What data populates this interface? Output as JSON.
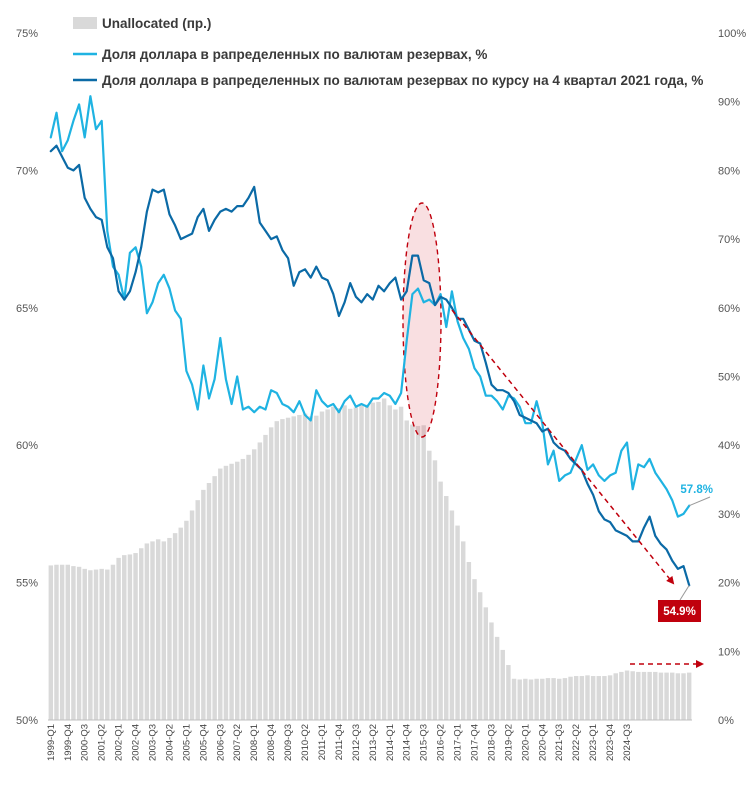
{
  "chart_data": {
    "type": "bar+line",
    "legend": {
      "bars": "Unallocated (пр.)",
      "line1": "Доля доллара в рапределенных по валютам резервах, %",
      "line2": "Доля доллара в рапределенных по валютам резервах по курсу на 4 квартал 2021 года, %"
    },
    "left_axis": {
      "min": 50,
      "max": 75,
      "ticks": [
        "50%",
        "55%",
        "60%",
        "65%",
        "70%",
        "75%"
      ]
    },
    "right_axis": {
      "min": 0,
      "max": 100,
      "ticks": [
        "0%",
        "10%",
        "20%",
        "30%",
        "40%",
        "50%",
        "60%",
        "70%",
        "80%",
        "90%",
        "100%"
      ]
    },
    "x_start": "1999-Q1",
    "x_labels": [
      "1999-Q1",
      "1999-Q4",
      "2000-Q3",
      "2001-Q2",
      "2002-Q1",
      "2002-Q4",
      "2003-Q3",
      "2004-Q2",
      "2005-Q1",
      "2005-Q4",
      "2006-Q3",
      "2007-Q2",
      "2008-Q1",
      "2008-Q4",
      "2009-Q3",
      "2010-Q2",
      "2011-Q1",
      "2011-Q4",
      "2012-Q3",
      "2013-Q2",
      "2014-Q1",
      "2014-Q4",
      "2015-Q3",
      "2016-Q2",
      "2017-Q1",
      "2017-Q4",
      "2018-Q3",
      "2019-Q2",
      "2020-Q1",
      "2020-Q4",
      "2021-Q3",
      "2022-Q2",
      "2023-Q1",
      "2023-Q4",
      "2024-Q3"
    ],
    "unallocated": [
      22.5,
      22.6,
      22.6,
      22.6,
      22.4,
      22.3,
      22.0,
      21.8,
      21.9,
      22.0,
      21.9,
      22.6,
      23.6,
      24.0,
      24.1,
      24.3,
      25.0,
      25.7,
      26.0,
      26.3,
      26.0,
      26.5,
      27.2,
      28.0,
      29.0,
      30.5,
      32.0,
      33.5,
      34.5,
      35.5,
      36.6,
      37.0,
      37.3,
      37.6,
      38.0,
      38.6,
      39.4,
      40.4,
      41.5,
      42.6,
      43.5,
      43.8,
      44.0,
      44.2,
      44.4,
      44.6,
      44.2,
      44.3,
      44.9,
      45.2,
      45.6,
      45.4,
      45.8,
      45.3,
      45.5,
      45.8,
      45.9,
      46.2,
      46.3,
      46.8,
      45.8,
      45.2,
      45.6,
      43.6,
      43.0,
      42.8,
      42.9,
      39.2,
      37.8,
      34.7,
      32.6,
      30.5,
      28.3,
      26.0,
      23.0,
      20.5,
      18.6,
      16.4,
      14.2,
      12.1,
      10.2,
      8.0,
      6.0,
      5.9,
      6.0,
      5.9,
      6.0,
      6.0,
      6.1,
      6.1,
      6.0,
      6.1,
      6.3,
      6.4,
      6.4,
      6.5,
      6.4,
      6.4,
      6.4,
      6.5,
      6.8,
      7.0,
      7.2,
      7.1,
      7.0,
      7.0,
      7.0,
      7.0,
      6.9,
      6.9,
      6.9,
      6.8,
      6.8,
      6.9
    ],
    "series_current": [
      71.2,
      72.1,
      70.7,
      71.1,
      71.8,
      72.4,
      71.2,
      72.7,
      71.5,
      71.8,
      67.8,
      66.5,
      66.2,
      65.3,
      67.0,
      67.2,
      66.5,
      64.8,
      65.2,
      65.9,
      66.2,
      65.7,
      64.9,
      64.6,
      62.7,
      62.2,
      61.3,
      62.9,
      61.7,
      62.4,
      63.9,
      62.4,
      61.5,
      62.5,
      61.3,
      61.4,
      61.2,
      61.4,
      61.3,
      62.0,
      61.9,
      61.5,
      61.4,
      61.2,
      61.6,
      61.1,
      60.9,
      62.0,
      61.6,
      61.4,
      61.5,
      61.2,
      61.6,
      61.8,
      61.4,
      61.5,
      61.4,
      61.7,
      61.7,
      61.9,
      61.8,
      61.5,
      61.9,
      63.8,
      65.5,
      65.7,
      65.2,
      65.3,
      65.1,
      65.5,
      64.3,
      65.6,
      64.5,
      63.9,
      63.5,
      62.8,
      62.5,
      61.8,
      61.8,
      61.6,
      61.3,
      61.8,
      61.7,
      61.4,
      60.8,
      60.8,
      61.6,
      60.8,
      59.3,
      59.8,
      58.7,
      58.9,
      59.0,
      59.5,
      60.0,
      59.1,
      59.3,
      58.9,
      58.7,
      58.9,
      59.0,
      59.8,
      60.1,
      58.4,
      59.3,
      59.2,
      59.5,
      59.0,
      58.7,
      58.4,
      58.0,
      57.4,
      57.5,
      57.8
    ],
    "series_constant": [
      70.7,
      70.9,
      70.5,
      70.1,
      70.0,
      70.2,
      69.0,
      68.6,
      68.3,
      68.2,
      67.2,
      66.8,
      65.6,
      65.3,
      65.6,
      66.3,
      67.2,
      68.5,
      69.3,
      69.2,
      69.3,
      68.4,
      68.0,
      67.5,
      67.6,
      67.7,
      68.3,
      68.6,
      67.8,
      68.2,
      68.5,
      68.6,
      68.5,
      68.7,
      68.7,
      69.0,
      69.4,
      68.1,
      67.8,
      67.5,
      67.6,
      67.1,
      66.8,
      65.8,
      66.3,
      66.4,
      66.1,
      66.5,
      66.1,
      66.0,
      65.5,
      64.7,
      65.2,
      65.9,
      65.4,
      65.2,
      65.5,
      65.3,
      65.8,
      65.6,
      65.9,
      66.1,
      65.3,
      65.6,
      66.9,
      66.9,
      66.0,
      65.9,
      65.1,
      65.4,
      65.3,
      65.0,
      64.6,
      64.6,
      64.2,
      63.8,
      63.7,
      63.0,
      62.2,
      62.0,
      62.0,
      61.9,
      61.6,
      61.1,
      61.0,
      60.9,
      60.8,
      60.5,
      60.6,
      60.1,
      59.9,
      59.8,
      59.5,
      59.3,
      59.1,
      58.6,
      58.2,
      57.6,
      57.3,
      57.2,
      56.9,
      56.8,
      56.7,
      56.5,
      56.5,
      57.0,
      57.4,
      56.7,
      56.4,
      56.2,
      55.8,
      55.5,
      55.6,
      54.9
    ],
    "end_labels": {
      "current": "57.8%",
      "constant": "54.9%"
    },
    "colors": {
      "bars": "#d9d9d9",
      "current": "#1fb3e2",
      "constant": "#0b6aa6",
      "accent": "#c0000d"
    }
  }
}
